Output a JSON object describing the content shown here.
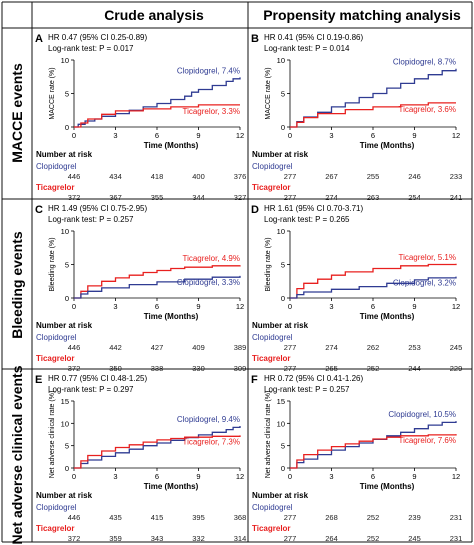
{
  "columns": [
    "Crude analysis",
    "Propensity matching analysis"
  ],
  "rows": [
    "MACCE events",
    "Bleeding events",
    "Net adverse clinical events"
  ],
  "colors": {
    "clopidogrel": "#2f3b92",
    "ticagrelor": "#e8201f",
    "border": "#111111"
  },
  "chart_data": [
    {
      "type": "line",
      "panel": "A",
      "ylabel": "MACCE rate (%)",
      "xlabel": "Time (Months)",
      "xlim": [
        0,
        12
      ],
      "ylim": [
        0,
        10
      ],
      "xticks": [
        0,
        3,
        6,
        9,
        12
      ],
      "yticks": [
        0,
        5,
        10
      ],
      "annotation": [
        "HR 0.47 (95% CI 0.25-0.89)",
        "Log-rank test: P = 0.017"
      ],
      "series": [
        {
          "name": "Clopidogrel, 7.4%",
          "x": [
            0,
            0.3,
            0.8,
            1.5,
            2,
            3,
            4,
            5,
            6,
            7,
            8,
            8.5,
            9,
            10,
            11,
            11.5,
            12
          ],
          "y": [
            0,
            0.4,
            0.9,
            1.2,
            1.6,
            2.0,
            2.5,
            3.0,
            3.5,
            4.1,
            4.6,
            5.2,
            5.6,
            6.2,
            6.8,
            7.2,
            7.4
          ]
        },
        {
          "name": "Ticagrelor, 3.3%",
          "x": [
            0,
            0.5,
            1,
            2,
            3,
            5,
            7,
            9,
            12
          ],
          "y": [
            0,
            0.6,
            1.2,
            1.9,
            2.4,
            2.7,
            3.0,
            3.3,
            3.3
          ]
        }
      ],
      "risk_table": {
        "title": "Number at risk",
        "rows": [
          {
            "name": "Clopidogrel",
            "values": [
              "446",
              "434",
              "418",
              "400",
              "376"
            ]
          },
          {
            "name": "Ticagrelor",
            "values": [
              "372",
              "367",
              "355",
              "344",
              "327"
            ]
          }
        ]
      }
    },
    {
      "type": "line",
      "panel": "B",
      "ylabel": "MACCE rate (%)",
      "xlabel": "Time (Months)",
      "xlim": [
        0,
        12
      ],
      "ylim": [
        0,
        10
      ],
      "xticks": [
        0,
        3,
        6,
        9,
        12
      ],
      "yticks": [
        0,
        5,
        10
      ],
      "annotation": [
        "HR 0.41 (95% CI 0.19-0.86)",
        "Log-rank test: P = 0.014"
      ],
      "series": [
        {
          "name": "Clopidogrel, 8.7%",
          "x": [
            0,
            0.5,
            1,
            2,
            3,
            4,
            5,
            6,
            7,
            8,
            9,
            10,
            11,
            12
          ],
          "y": [
            0,
            0.8,
            1.5,
            2.2,
            3.0,
            3.6,
            4.4,
            5.0,
            5.8,
            6.5,
            7.2,
            7.8,
            8.4,
            8.7
          ]
        },
        {
          "name": "Ticagrelor, 3.6%",
          "x": [
            0,
            0.5,
            1,
            2,
            4,
            6,
            8,
            10,
            12
          ],
          "y": [
            0,
            0.7,
            1.4,
            2.0,
            2.6,
            3.0,
            3.3,
            3.6,
            3.6
          ]
        }
      ],
      "risk_table": {
        "title": "Number at risk",
        "rows": [
          {
            "name": "Clopidogrel",
            "values": [
              "277",
              "267",
              "255",
              "246",
              "233"
            ]
          },
          {
            "name": "Ticagrelor",
            "values": [
              "277",
              "274",
              "263",
              "254",
              "241"
            ]
          }
        ]
      }
    },
    {
      "type": "line",
      "panel": "C",
      "ylabel": "Bleeding rate (%)",
      "xlabel": "Time (Months)",
      "xlim": [
        0,
        12
      ],
      "ylim": [
        0,
        10
      ],
      "xticks": [
        0,
        3,
        6,
        9,
        12
      ],
      "yticks": [
        0,
        5,
        10
      ],
      "annotation": [
        "HR 1.49 (95% CI 0.75-2.95)",
        "Log-rank test: P = 0.257"
      ],
      "series": [
        {
          "name": "Ticagrelor, 4.9%",
          "x": [
            0,
            0.5,
            1,
            2,
            3,
            4,
            5,
            6,
            7,
            8,
            10,
            12
          ],
          "y": [
            0,
            1.0,
            1.8,
            2.5,
            3.0,
            3.4,
            3.8,
            4.1,
            4.4,
            4.6,
            4.8,
            4.9
          ]
        },
        {
          "name": "Clopidogrel, 3.3%",
          "x": [
            0,
            0.5,
            1,
            2,
            4,
            6,
            8,
            10,
            12
          ],
          "y": [
            0,
            0.6,
            1.0,
            1.5,
            2.0,
            2.4,
            2.8,
            3.1,
            3.3
          ]
        }
      ],
      "risk_table": {
        "title": "Number at risk",
        "rows": [
          {
            "name": "Clopidogrel",
            "values": [
              "446",
              "442",
              "427",
              "409",
              "389"
            ]
          },
          {
            "name": "Ticagrelor",
            "values": [
              "372",
              "350",
              "338",
              "330",
              "309"
            ]
          }
        ]
      }
    },
    {
      "type": "line",
      "panel": "D",
      "ylabel": "Bleeding rate (%)",
      "xlabel": "Time (Months)",
      "xlim": [
        0,
        12
      ],
      "ylim": [
        0,
        10
      ],
      "xticks": [
        0,
        3,
        6,
        9,
        12
      ],
      "yticks": [
        0,
        5,
        10
      ],
      "annotation": [
        "HR 1.61 (95% CI 0.70-3.71)",
        "Log-rank test: P = 0.265"
      ],
      "series": [
        {
          "name": "Ticagrelor, 5.1%",
          "x": [
            0,
            0.5,
            1,
            2,
            3,
            4,
            6,
            8,
            10,
            12
          ],
          "y": [
            0,
            1.4,
            2.2,
            2.8,
            3.4,
            3.9,
            4.4,
            4.8,
            5.0,
            5.1
          ]
        },
        {
          "name": "Clopidogrel, 3.2%",
          "x": [
            0,
            0.5,
            1,
            3,
            5,
            7,
            9,
            10,
            12
          ],
          "y": [
            0,
            0.5,
            0.9,
            1.3,
            1.7,
            2.2,
            2.7,
            3.0,
            3.2
          ]
        }
      ],
      "risk_table": {
        "title": "Number at risk",
        "rows": [
          {
            "name": "Clopidogrel",
            "values": [
              "277",
              "274",
              "262",
              "253",
              "245"
            ]
          },
          {
            "name": "Ticagrelor",
            "values": [
              "277",
              "265",
              "252",
              "244",
              "229"
            ]
          }
        ]
      }
    },
    {
      "type": "line",
      "panel": "E",
      "ylabel": "Net adverse clinical rate (%)",
      "xlabel": "Time (Months)",
      "xlim": [
        0,
        12
      ],
      "ylim": [
        0,
        15
      ],
      "xticks": [
        0,
        3,
        6,
        9,
        12
      ],
      "yticks": [
        0,
        5,
        10,
        15
      ],
      "annotation": [
        "HR 0.77 (95% CI 0.48-1.25)",
        "Log-rank test: P = 0.297"
      ],
      "series": [
        {
          "name": "Clopidogrel, 9.4%",
          "x": [
            0,
            0.5,
            1,
            2,
            3,
            4,
            5,
            6,
            7,
            8,
            9,
            10,
            11,
            11.5,
            12
          ],
          "y": [
            0,
            1.0,
            1.8,
            2.6,
            3.4,
            4.2,
            5.0,
            5.6,
            6.2,
            6.8,
            7.4,
            8.0,
            8.6,
            9.1,
            9.4
          ]
        },
        {
          "name": "Ticagrelor, 7.3%",
          "x": [
            0,
            0.5,
            1,
            2,
            3,
            4,
            5,
            6,
            7,
            8,
            10,
            12
          ],
          "y": [
            0,
            1.6,
            2.8,
            3.8,
            4.6,
            5.2,
            5.8,
            6.3,
            6.6,
            6.9,
            7.1,
            7.3
          ]
        }
      ],
      "risk_table": {
        "title": "Number at risk",
        "rows": [
          {
            "name": "Clopidogrel",
            "values": [
              "446",
              "435",
              "415",
              "395",
              "368"
            ]
          },
          {
            "name": "Ticagrelor",
            "values": [
              "372",
              "359",
              "343",
              "332",
              "314"
            ]
          }
        ]
      }
    },
    {
      "type": "line",
      "panel": "F",
      "ylabel": "Net adverse clinical rate (%)",
      "xlabel": "Time (Months)",
      "xlim": [
        0,
        12
      ],
      "ylim": [
        0,
        15
      ],
      "xticks": [
        0,
        3,
        6,
        9,
        12
      ],
      "yticks": [
        0,
        5,
        10,
        15
      ],
      "annotation": [
        "HR 0.72 (95% CI 0.41-1.26)",
        "Log-rank test: P = 0.257"
      ],
      "series": [
        {
          "name": "Clopidogrel, 10.5%",
          "x": [
            0,
            0.5,
            1,
            2,
            3,
            4,
            5,
            6,
            7,
            8,
            9,
            10,
            11,
            12
          ],
          "y": [
            0,
            1.2,
            2.0,
            3.0,
            4.0,
            4.8,
            5.6,
            6.4,
            7.2,
            8.0,
            8.8,
            9.6,
            10.2,
            10.5
          ]
        },
        {
          "name": "Ticagrelor, 7.6%",
          "x": [
            0,
            0.5,
            1,
            2,
            3,
            4,
            5,
            6,
            7,
            8,
            10,
            12
          ],
          "y": [
            0,
            1.8,
            3.0,
            4.0,
            4.8,
            5.4,
            6.0,
            6.5,
            6.9,
            7.2,
            7.4,
            7.6
          ]
        }
      ],
      "risk_table": {
        "title": "Number at risk",
        "rows": [
          {
            "name": "Clopidogrel",
            "values": [
              "277",
              "268",
              "252",
              "239",
              "231"
            ]
          },
          {
            "name": "Ticagrelor",
            "values": [
              "277",
              "264",
              "252",
              "245",
              "231"
            ]
          }
        ]
      }
    }
  ]
}
